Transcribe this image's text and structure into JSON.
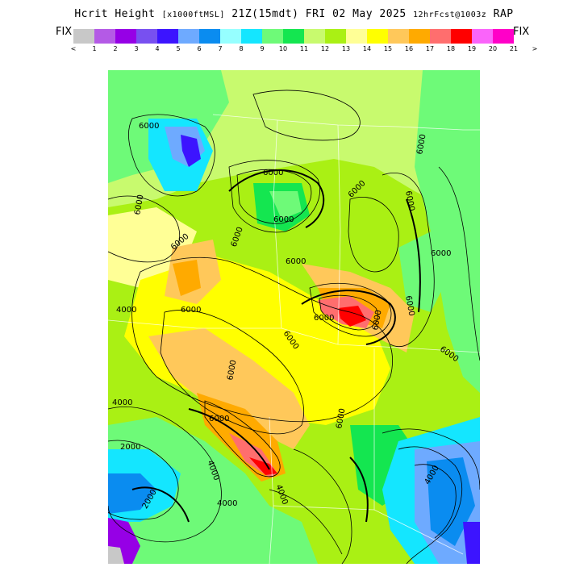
{
  "header": {
    "title_main": "Hcrit Height",
    "title_units": "[x1000ftMSL]",
    "title_time": "21Z(15mdt) FRI 02 May 2025",
    "title_fcst": "12hrFcst@1003z",
    "title_model": "RAP"
  },
  "controls": {
    "fix_left": "FIX",
    "fix_right": "FIX"
  },
  "colorbar": {
    "labels": [
      "<",
      "1",
      "2",
      "3",
      "4",
      "5",
      "6",
      "7",
      "8",
      "9",
      "10",
      "11",
      "12",
      "13",
      "14",
      "15",
      "16",
      "17",
      "18",
      "19",
      "20",
      "21",
      ">"
    ],
    "colors": [
      "#c8c8c8",
      "#b45ae6",
      "#9600e6",
      "#7850f0",
      "#3c14ff",
      "#6eaaff",
      "#0a8cf0",
      "#96ffff",
      "#14e6ff",
      "#6efa78",
      "#14e650",
      "#c8fa6e",
      "#aaf014",
      "#ffff96",
      "#ffff00",
      "#ffc85a",
      "#ffaa00",
      "#ff6e6e",
      "#ff0000",
      "#fa64fa",
      "#ff00c8"
    ]
  },
  "map": {
    "contour_labels": [
      "6000",
      "6000",
      "6000",
      "6000",
      "6000",
      "6000",
      "6000",
      "6000",
      "6000",
      "6000",
      "6000",
      "6000",
      "6000",
      "6000",
      "6000",
      "6000",
      "6000",
      "6000",
      "6000",
      "6000",
      "4000",
      "4000",
      "4000",
      "4000",
      "2000",
      "2000",
      "4000",
      "4000"
    ]
  }
}
